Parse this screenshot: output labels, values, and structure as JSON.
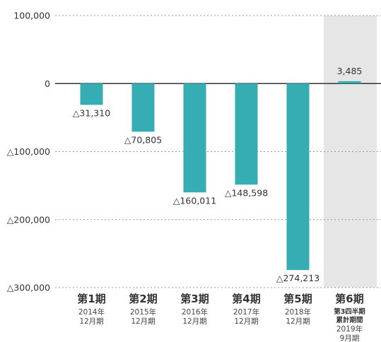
{
  "chart_data": {
    "type": "bar",
    "title": "",
    "xlabel": "",
    "ylabel": "",
    "ylim": [
      -300000,
      100000
    ],
    "y_ticks": [
      100000,
      0,
      -100000,
      -200000,
      -300000
    ],
    "y_tick_labels": [
      "100,000",
      "0",
      "△100,000",
      "△200,000",
      "△300,000"
    ],
    "grid": "horizontal-dotted",
    "categories": [
      {
        "period": "第1期",
        "lines": [
          "2014年",
          "12月期"
        ],
        "bold_lines": []
      },
      {
        "period": "第2期",
        "lines": [
          "2015年",
          "12月期"
        ],
        "bold_lines": []
      },
      {
        "period": "第3期",
        "lines": [
          "2016年",
          "12月期"
        ],
        "bold_lines": []
      },
      {
        "period": "第4期",
        "lines": [
          "2017年",
          "12月期"
        ],
        "bold_lines": []
      },
      {
        "period": "第5期",
        "lines": [
          "2018年",
          "12月期"
        ],
        "bold_lines": []
      },
      {
        "period": "第6期",
        "lines": [
          "2019年",
          "9月期"
        ],
        "bold_lines": [
          "第3四半期",
          "累計期間"
        ]
      }
    ],
    "values": [
      -31310,
      -70805,
      -160011,
      -148598,
      -274213,
      3485
    ],
    "data_labels": [
      "△31,310",
      "△70,805",
      "△160,011",
      "△148,598",
      "△274,213",
      "3,485"
    ],
    "highlight_index": 5,
    "colors": {
      "bar": "#35adb2",
      "highlight_bg": "#e6e6e6",
      "grid": "#999999",
      "zero_line": "#333333",
      "text": "#333333"
    }
  }
}
